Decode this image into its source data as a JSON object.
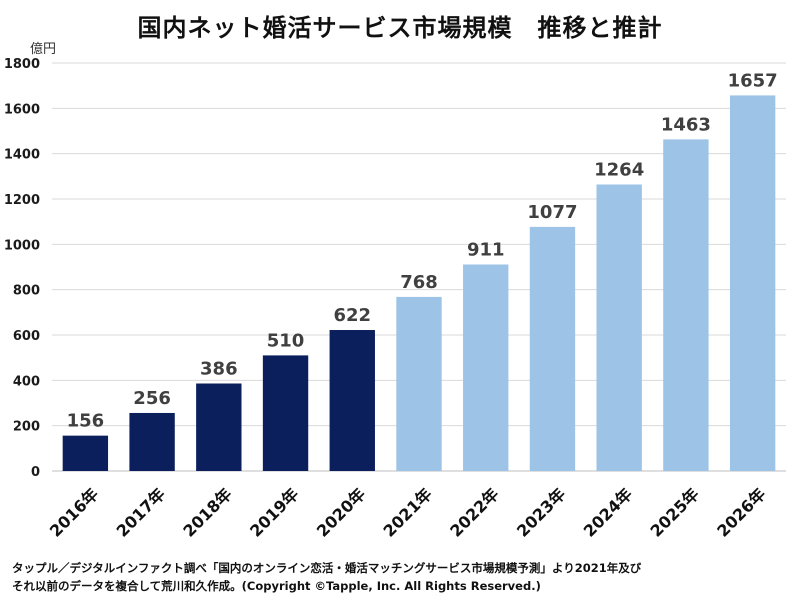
{
  "title": "国内ネット婚活サービス市場規模　推移と推計",
  "unit": "億円",
  "footnote": {
    "line1": "タップル／デジタルインファクト調べ「国内のオンライン恋活・婚活マッチングサービス市場規模予測」より2021年及び",
    "line2": "それ以前のデータを複合して荒川和久作成。(Copyright ©Tapple, Inc. All Rights Reserved.)"
  },
  "colors": {
    "actual": "#0b1f5c",
    "forecast": "#9dc3e6",
    "grid": "#d9d9d9",
    "axis": "#bfbfbf",
    "label": "#404040"
  },
  "chart_data": {
    "type": "bar",
    "title": "国内ネット婚活サービス市場規模　推移と推計",
    "ylabel": "億円",
    "ylim": [
      0,
      1800
    ],
    "yticks": [
      0,
      200,
      400,
      600,
      800,
      1000,
      1200,
      1400,
      1600,
      1800
    ],
    "categories": [
      "2016年",
      "2017年",
      "2018年",
      "2019年",
      "2020年",
      "2021年",
      "2022年",
      "2023年",
      "2024年",
      "2025年",
      "2026年"
    ],
    "values": [
      156,
      256,
      386,
      510,
      622,
      768,
      911,
      1077,
      1264,
      1463,
      1657
    ],
    "kind": [
      "actual",
      "actual",
      "actual",
      "actual",
      "actual",
      "forecast",
      "forecast",
      "forecast",
      "forecast",
      "forecast",
      "forecast"
    ],
    "grid": true,
    "legend": "none"
  }
}
